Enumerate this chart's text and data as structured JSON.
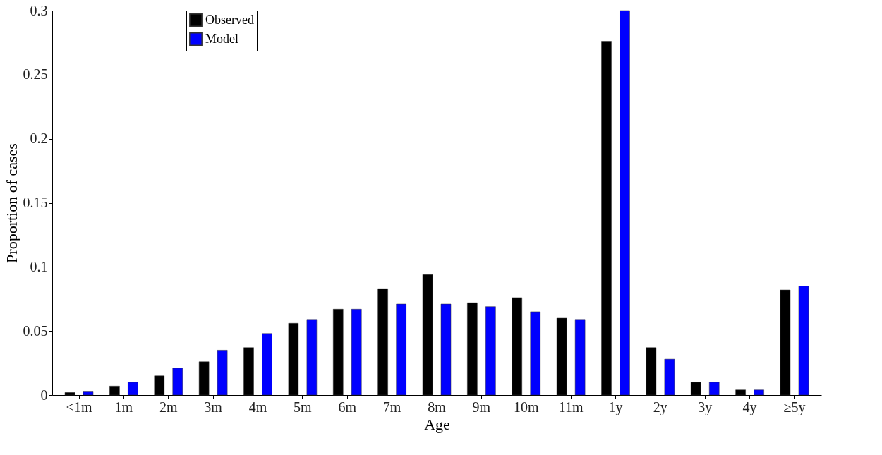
{
  "chart_data": {
    "type": "bar",
    "xlabel": "Age",
    "ylabel": "Proportion of cases",
    "categories": [
      "<1m",
      "1m",
      "2m",
      "3m",
      "4m",
      "5m",
      "6m",
      "7m",
      "8m",
      "9m",
      "10m",
      "11m",
      "1y",
      "2y",
      "3y",
      "4y",
      "≥5y"
    ],
    "series": [
      {
        "name": "Observed",
        "color": "#000000",
        "values": [
          0.002,
          0.007,
          0.015,
          0.026,
          0.037,
          0.056,
          0.067,
          0.083,
          0.094,
          0.072,
          0.076,
          0.06,
          0.276,
          0.037,
          0.01,
          0.004,
          0.082
        ]
      },
      {
        "name": "Model",
        "color": "#0000ff",
        "values": [
          0.003,
          0.01,
          0.021,
          0.035,
          0.048,
          0.059,
          0.067,
          0.071,
          0.071,
          0.069,
          0.065,
          0.059,
          0.3,
          0.028,
          0.01,
          0.004,
          0.085
        ]
      }
    ],
    "ylim": [
      0,
      0.3
    ],
    "yticks": [
      0,
      0.05,
      0.1,
      0.15,
      0.2,
      0.25,
      0.3
    ],
    "grid": false,
    "legend": "top left"
  }
}
